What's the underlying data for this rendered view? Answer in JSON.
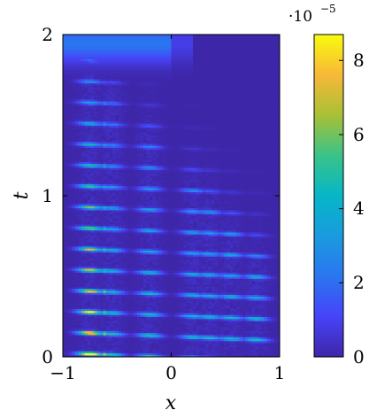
{
  "chart_data": {
    "type": "heatmap",
    "title": "",
    "xlabel": "x",
    "ylabel": "t",
    "xlim": [
      -1,
      1
    ],
    "ylim": [
      0,
      2
    ],
    "x_ticks": [
      -1,
      0,
      1
    ],
    "x_tick_labels": [
      "−1",
      "0",
      "1"
    ],
    "y_ticks": [
      0,
      1,
      2
    ],
    "y_tick_labels": [
      "0",
      "1",
      "2"
    ],
    "colorbar": {
      "colormap": "parula",
      "range": [
        0,
        8.7
      ],
      "ticks": [
        0,
        2,
        4,
        6,
        8
      ],
      "tick_labels": [
        "0",
        "2",
        "4",
        "6",
        "8"
      ],
      "multiplier_base": "·10",
      "multiplier_exponent": "−5"
    },
    "field_description_values": {
      "x_band_centers": [
        -0.75,
        -0.55,
        -0.2,
        0.2,
        0.35,
        0.55,
        0.78
      ],
      "t_row_spacing": 0.095,
      "max_value": 8.7
    },
    "grid": false
  },
  "colors": {
    "background_low": "#3e26a8",
    "high": "#f9fb0e"
  }
}
